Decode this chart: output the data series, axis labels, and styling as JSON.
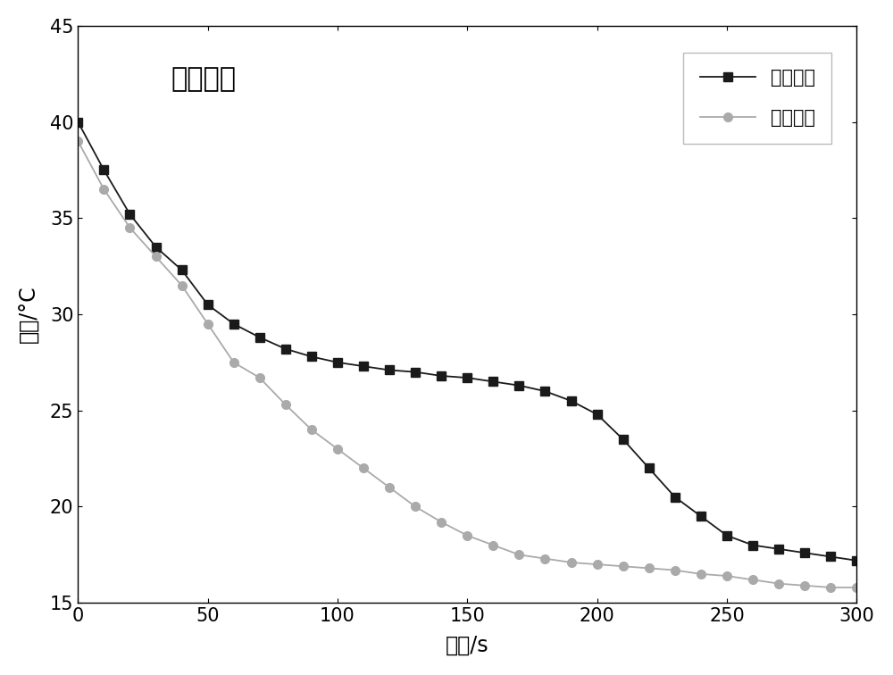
{
  "title": "降温曲线",
  "xlabel": "时间/s",
  "ylabel": "温度/°C",
  "xlim": [
    0,
    300
  ],
  "ylim": [
    15,
    45
  ],
  "xticks": [
    0,
    50,
    100,
    150,
    200,
    250,
    300
  ],
  "yticks": [
    15,
    20,
    25,
    30,
    35,
    40,
    45
  ],
  "series1_label": "实施例八",
  "series2_label": "对比例一",
  "series1_color": "#1a1a1a",
  "series2_color": "#aaaaaa",
  "series1_marker": "s",
  "series2_marker": "o",
  "series1_x": [
    0,
    10,
    20,
    30,
    40,
    50,
    60,
    70,
    80,
    90,
    100,
    110,
    120,
    130,
    140,
    150,
    160,
    170,
    180,
    190,
    200,
    210,
    220,
    230,
    240,
    250,
    260,
    270,
    280,
    290,
    300
  ],
  "series1_y": [
    40.0,
    37.5,
    35.2,
    33.5,
    32.3,
    30.5,
    29.5,
    28.8,
    28.2,
    27.8,
    27.5,
    27.3,
    27.1,
    27.0,
    26.8,
    26.7,
    26.5,
    26.3,
    26.0,
    25.5,
    24.8,
    23.5,
    22.0,
    20.5,
    19.5,
    18.5,
    18.0,
    17.8,
    17.6,
    17.4,
    17.2
  ],
  "series2_x": [
    0,
    10,
    20,
    30,
    40,
    50,
    60,
    70,
    80,
    90,
    100,
    110,
    120,
    130,
    140,
    150,
    160,
    170,
    180,
    190,
    200,
    210,
    220,
    230,
    240,
    250,
    260,
    270,
    280,
    290,
    300
  ],
  "series2_y": [
    39.0,
    36.5,
    34.5,
    33.0,
    31.5,
    29.5,
    27.5,
    26.7,
    25.3,
    24.0,
    23.0,
    22.0,
    21.0,
    20.0,
    19.2,
    18.5,
    18.0,
    17.5,
    17.3,
    17.1,
    17.0,
    16.9,
    16.8,
    16.7,
    16.5,
    16.4,
    16.2,
    16.0,
    15.9,
    15.8,
    15.8
  ],
  "background_color": "#ffffff",
  "title_fontsize": 22,
  "label_fontsize": 17,
  "tick_fontsize": 15,
  "legend_fontsize": 15,
  "marker_size": 7,
  "line_width": 1.3
}
